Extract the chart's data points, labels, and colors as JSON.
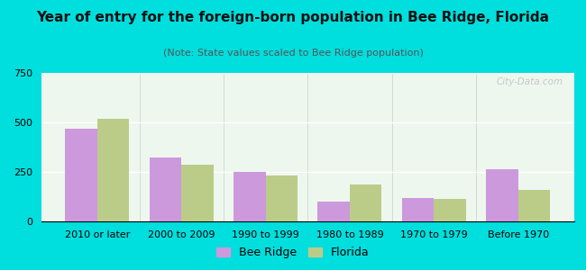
{
  "title": "Year of entry for the foreign-born population in Bee Ridge, Florida",
  "subtitle": "(Note: State values scaled to Bee Ridge population)",
  "categories": [
    "2010 or later",
    "2000 to 2009",
    "1990 to 1999",
    "1980 to 1989",
    "1970 to 1979",
    "Before 1970"
  ],
  "bee_ridge": [
    470,
    325,
    248,
    100,
    120,
    262
  ],
  "florida": [
    520,
    285,
    232,
    185,
    115,
    158
  ],
  "bee_ridge_color": "#cc99dd",
  "florida_color": "#bbcc88",
  "background_outer": "#00dede",
  "ylim": [
    0,
    750
  ],
  "yticks": [
    0,
    250,
    500,
    750
  ],
  "bar_width": 0.38,
  "title_fontsize": 11,
  "subtitle_fontsize": 8,
  "tick_fontsize": 8,
  "legend_fontsize": 9
}
